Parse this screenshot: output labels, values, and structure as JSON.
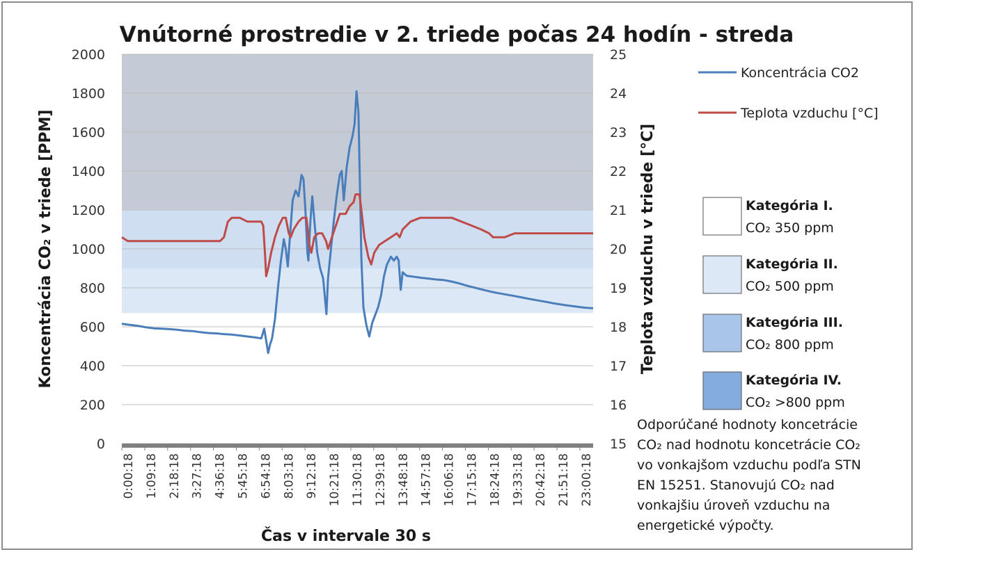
{
  "chart_data": {
    "type": "line",
    "title": "Vnútorné prostredie v 2. triede počas 24 hodín - streda",
    "xlabel": "Čas v intervale 30 s",
    "ylabel_left": "Koncentrácia CO₂ v triede [PPM]",
    "ylabel_right": "Teplota vzduchu v triede [°C]",
    "y_left_range": [
      0,
      2000
    ],
    "y_right_range": [
      15,
      25
    ],
    "y_left_ticks": [
      "0",
      "200",
      "400",
      "600",
      "800",
      "1000",
      "1200",
      "1400",
      "1600",
      "1800",
      "2000"
    ],
    "y_right_ticks": [
      "15",
      "16",
      "17",
      "18",
      "19",
      "20",
      "21",
      "22",
      "23",
      "24",
      "25"
    ],
    "x_ticks": [
      "0:00:18",
      "1:09:18",
      "2:18:18",
      "3:27:18",
      "4:36:18",
      "5:45:18",
      "6:54:18",
      "8:03:18",
      "9:12:18",
      "10:21:18",
      "11:30:18",
      "12:39:18",
      "13:48:18",
      "14:57:18",
      "16:06:18",
      "17:15:18",
      "18:24:18",
      "19:33:18",
      "20:42:18",
      "21:51:18",
      "23:00:18"
    ],
    "x_range_hours": [
      0,
      24
    ],
    "grid": "horizontal",
    "legend_position": "right",
    "bands": [
      {
        "name": "Kategória IV.",
        "y_from": 1200,
        "y_to": 2000,
        "color": "#c5cbd6"
      },
      {
        "name": "Kategória III.",
        "y_from": 900,
        "y_to": 1200,
        "color": "#cfdef0"
      },
      {
        "name": "Kategória II.",
        "y_from": 670,
        "y_to": 900,
        "color": "#dce8f6"
      }
    ],
    "series": [
      {
        "name": "Koncentrácia CO2",
        "axis": "left",
        "color": "#4a7ebb",
        "points": [
          [
            0.0,
            615
          ],
          [
            0.4,
            610
          ],
          [
            0.8,
            605
          ],
          [
            1.2,
            598
          ],
          [
            1.6,
            592
          ],
          [
            2.0,
            590
          ],
          [
            2.4,
            588
          ],
          [
            2.8,
            585
          ],
          [
            3.2,
            580
          ],
          [
            3.6,
            578
          ],
          [
            4.0,
            572
          ],
          [
            4.4,
            568
          ],
          [
            4.8,
            566
          ],
          [
            5.2,
            562
          ],
          [
            5.6,
            560
          ],
          [
            6.0,
            555
          ],
          [
            6.4,
            550
          ],
          [
            6.8,
            545
          ],
          [
            7.1,
            540
          ],
          [
            7.25,
            590
          ],
          [
            7.35,
            530
          ],
          [
            7.45,
            465
          ],
          [
            7.55,
            510
          ],
          [
            7.65,
            540
          ],
          [
            7.8,
            640
          ],
          [
            7.95,
            800
          ],
          [
            8.1,
            940
          ],
          [
            8.25,
            1050
          ],
          [
            8.35,
            1000
          ],
          [
            8.45,
            910
          ],
          [
            8.55,
            1050
          ],
          [
            8.7,
            1250
          ],
          [
            8.85,
            1300
          ],
          [
            9.0,
            1270
          ],
          [
            9.15,
            1380
          ],
          [
            9.25,
            1360
          ],
          [
            9.35,
            1200
          ],
          [
            9.45,
            980
          ],
          [
            9.5,
            940
          ],
          [
            9.6,
            1140
          ],
          [
            9.7,
            1270
          ],
          [
            9.8,
            1150
          ],
          [
            9.95,
            980
          ],
          [
            10.1,
            900
          ],
          [
            10.25,
            850
          ],
          [
            10.35,
            740
          ],
          [
            10.42,
            665
          ],
          [
            10.5,
            850
          ],
          [
            10.65,
            1000
          ],
          [
            10.8,
            1150
          ],
          [
            10.95,
            1280
          ],
          [
            11.1,
            1380
          ],
          [
            11.2,
            1400
          ],
          [
            11.3,
            1250
          ],
          [
            11.45,
            1420
          ],
          [
            11.6,
            1520
          ],
          [
            11.75,
            1580
          ],
          [
            11.85,
            1640
          ],
          [
            11.95,
            1810
          ],
          [
            12.05,
            1700
          ],
          [
            12.12,
            1350
          ],
          [
            12.2,
            950
          ],
          [
            12.3,
            700
          ],
          [
            12.45,
            610
          ],
          [
            12.6,
            550
          ],
          [
            12.75,
            620
          ],
          [
            12.9,
            660
          ],
          [
            13.05,
            700
          ],
          [
            13.2,
            760
          ],
          [
            13.35,
            860
          ],
          [
            13.5,
            920
          ],
          [
            13.7,
            960
          ],
          [
            13.85,
            940
          ],
          [
            14.0,
            960
          ],
          [
            14.1,
            940
          ],
          [
            14.2,
            790
          ],
          [
            14.3,
            880
          ],
          [
            14.5,
            862
          ],
          [
            14.8,
            858
          ],
          [
            15.2,
            852
          ],
          [
            15.6,
            848
          ],
          [
            16.0,
            843
          ],
          [
            16.4,
            840
          ],
          [
            16.8,
            832
          ],
          [
            17.2,
            822
          ],
          [
            17.6,
            810
          ],
          [
            18.0,
            800
          ],
          [
            18.4,
            790
          ],
          [
            18.8,
            780
          ],
          [
            19.2,
            772
          ],
          [
            19.6,
            765
          ],
          [
            20.0,
            758
          ],
          [
            20.4,
            750
          ],
          [
            20.8,
            742
          ],
          [
            21.2,
            735
          ],
          [
            21.6,
            728
          ],
          [
            22.0,
            720
          ],
          [
            22.4,
            714
          ],
          [
            22.8,
            708
          ],
          [
            23.2,
            703
          ],
          [
            23.6,
            698
          ],
          [
            24.0,
            695
          ]
        ]
      },
      {
        "name": "Teplota vzduchu [°C]",
        "axis": "right",
        "color": "#be4b48",
        "points": [
          [
            0.0,
            20.3
          ],
          [
            0.3,
            20.2
          ],
          [
            1.0,
            20.2
          ],
          [
            2.0,
            20.2
          ],
          [
            3.0,
            20.2
          ],
          [
            4.0,
            20.2
          ],
          [
            5.0,
            20.2
          ],
          [
            5.2,
            20.3
          ],
          [
            5.4,
            20.7
          ],
          [
            5.6,
            20.8
          ],
          [
            6.0,
            20.8
          ],
          [
            6.4,
            20.7
          ],
          [
            6.8,
            20.7
          ],
          [
            7.1,
            20.7
          ],
          [
            7.2,
            20.6
          ],
          [
            7.3,
            19.8
          ],
          [
            7.35,
            19.3
          ],
          [
            7.45,
            19.5
          ],
          [
            7.6,
            19.9
          ],
          [
            7.8,
            20.3
          ],
          [
            8.0,
            20.6
          ],
          [
            8.2,
            20.8
          ],
          [
            8.35,
            20.8
          ],
          [
            8.5,
            20.4
          ],
          [
            8.6,
            20.3
          ],
          [
            8.75,
            20.5
          ],
          [
            9.0,
            20.7
          ],
          [
            9.2,
            20.8
          ],
          [
            9.4,
            20.8
          ],
          [
            9.55,
            20.1
          ],
          [
            9.65,
            19.9
          ],
          [
            9.8,
            20.3
          ],
          [
            10.0,
            20.4
          ],
          [
            10.2,
            20.4
          ],
          [
            10.4,
            20.2
          ],
          [
            10.5,
            20.0
          ],
          [
            10.7,
            20.3
          ],
          [
            10.9,
            20.6
          ],
          [
            11.1,
            20.9
          ],
          [
            11.4,
            20.9
          ],
          [
            11.6,
            21.1
          ],
          [
            11.8,
            21.2
          ],
          [
            11.9,
            21.4
          ],
          [
            12.1,
            21.4
          ],
          [
            12.2,
            21.0
          ],
          [
            12.35,
            20.3
          ],
          [
            12.55,
            19.8
          ],
          [
            12.7,
            19.6
          ],
          [
            12.85,
            19.9
          ],
          [
            13.1,
            20.1
          ],
          [
            13.4,
            20.2
          ],
          [
            13.7,
            20.3
          ],
          [
            14.0,
            20.4
          ],
          [
            14.15,
            20.3
          ],
          [
            14.3,
            20.5
          ],
          [
            14.7,
            20.7
          ],
          [
            15.2,
            20.8
          ],
          [
            16.0,
            20.8
          ],
          [
            16.8,
            20.8
          ],
          [
            17.3,
            20.7
          ],
          [
            17.8,
            20.6
          ],
          [
            18.3,
            20.5
          ],
          [
            18.7,
            20.4
          ],
          [
            18.9,
            20.3
          ],
          [
            19.5,
            20.3
          ],
          [
            20.0,
            20.4
          ],
          [
            21.0,
            20.4
          ],
          [
            22.0,
            20.4
          ],
          [
            23.0,
            20.4
          ],
          [
            24.0,
            20.4
          ]
        ]
      }
    ]
  },
  "legend": {
    "series": [
      {
        "label": "Koncentrácia CO2",
        "color": "#4a7ebb"
      },
      {
        "label": "Teplota vzduchu [°C]",
        "color": "#be4b48"
      }
    ],
    "categories": [
      {
        "title": "Kategória I.",
        "sub": "CO₂ 350 ppm",
        "color": "#ffffff"
      },
      {
        "title": "Kategória II.",
        "sub": "CO₂ 500 ppm",
        "color": "#dce8f6"
      },
      {
        "title": "Kategória III.",
        "sub": "CO₂ 800 ppm",
        "color": "#a9c5e8"
      },
      {
        "title": "Kategória IV.",
        "sub": "CO₂ >800 ppm",
        "color": "#84addd"
      }
    ]
  },
  "note": [
    "Odporúčané hodnoty koncetrácie",
    "CO₂ nad hodnotu koncetrácie CO₂",
    "vo vonkajšom vzduchu podľa STN",
    "EN 15251. Stanovujú CO₂ nad",
    "vonkajšiu úroveň vzduchu na",
    "energetické výpočty."
  ]
}
